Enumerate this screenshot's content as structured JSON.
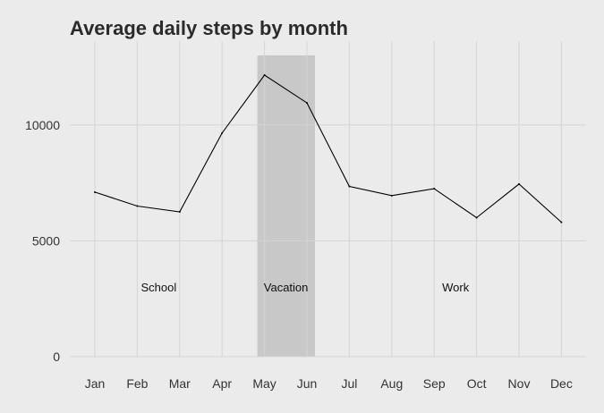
{
  "chart_data": {
    "type": "line",
    "title": "Average daily steps by month",
    "xlabel": "",
    "ylabel": "",
    "categories": [
      "Jan",
      "Feb",
      "Mar",
      "Apr",
      "May",
      "Jun",
      "Jul",
      "Aug",
      "Sep",
      "Oct",
      "Nov",
      "Dec"
    ],
    "series": [
      {
        "values": [
          7100,
          6500,
          6250,
          9650,
          12150,
          10950,
          7350,
          6950,
          7250,
          6000,
          7450,
          5800
        ]
      }
    ],
    "yticks": [
      0,
      5000,
      10000
    ],
    "ylim": [
      0,
      13000
    ],
    "grid": true,
    "legend": "none",
    "highlight_band": {
      "from": "May",
      "to": "Jun",
      "color": "#c8c8c8"
    },
    "annotations": [
      {
        "text": "School",
        "x": "Feb",
        "y": 3000
      },
      {
        "text": "Vacation",
        "x": "May",
        "y": 3000
      },
      {
        "text": "Work",
        "x": "Sep",
        "y": 3000
      }
    ],
    "colors": {
      "background": "#ebebeb",
      "grid": "#d4d4d4",
      "line": "#000000"
    }
  }
}
